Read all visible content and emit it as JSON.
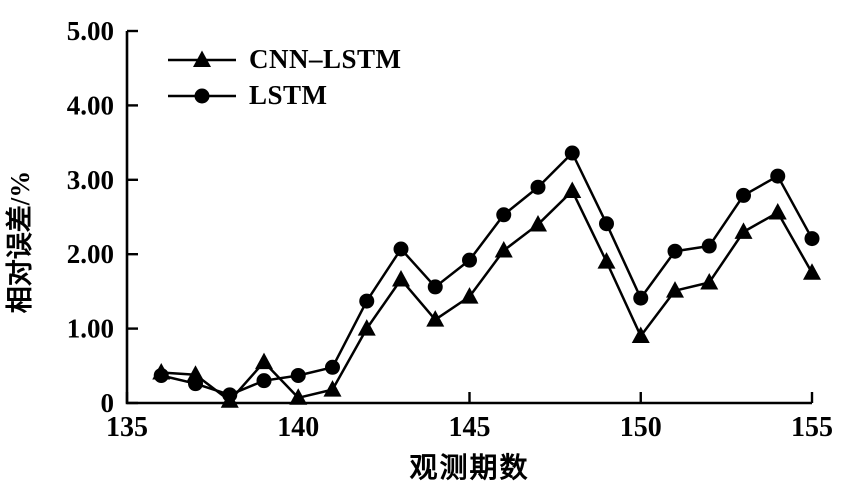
{
  "chart_data": {
    "type": "line",
    "title": "",
    "xlabel": "观测期数",
    "ylabel": "相对误差/%",
    "xlim": [
      135,
      155
    ],
    "ylim": [
      0,
      5
    ],
    "x_ticks": [
      135,
      140,
      145,
      150,
      155
    ],
    "x_tick_labels": [
      "135",
      "140",
      "145",
      "150",
      "155"
    ],
    "y_ticks": [
      0,
      1,
      2,
      3,
      4,
      5
    ],
    "y_tick_labels": [
      "0",
      "1.00",
      "2.00",
      "3.00",
      "4.00",
      "5.00"
    ],
    "grid": false,
    "legend_position": "inside-top-left",
    "background_color": "#ffffff",
    "axis_color": "#000000",
    "x": [
      136,
      137,
      138,
      139,
      140,
      141,
      142,
      143,
      144,
      145,
      146,
      147,
      148,
      149,
      150,
      151,
      152,
      153,
      154,
      155
    ],
    "series": [
      {
        "name": "CNN–LSTM",
        "marker": "triangle",
        "color": "#000000",
        "values": [
          0.41,
          0.38,
          0.03,
          0.55,
          0.07,
          0.18,
          1.0,
          1.66,
          1.12,
          1.43,
          2.05,
          2.4,
          2.85,
          1.9,
          0.9,
          1.51,
          1.62,
          2.3,
          2.56,
          1.75
        ]
      },
      {
        "name": "LSTM",
        "marker": "circle",
        "color": "#000000",
        "values": [
          0.37,
          0.26,
          0.11,
          0.3,
          0.37,
          0.48,
          1.37,
          2.07,
          1.56,
          1.92,
          2.53,
          2.9,
          3.36,
          2.41,
          1.41,
          2.04,
          2.11,
          2.79,
          3.05,
          2.21
        ]
      }
    ]
  }
}
